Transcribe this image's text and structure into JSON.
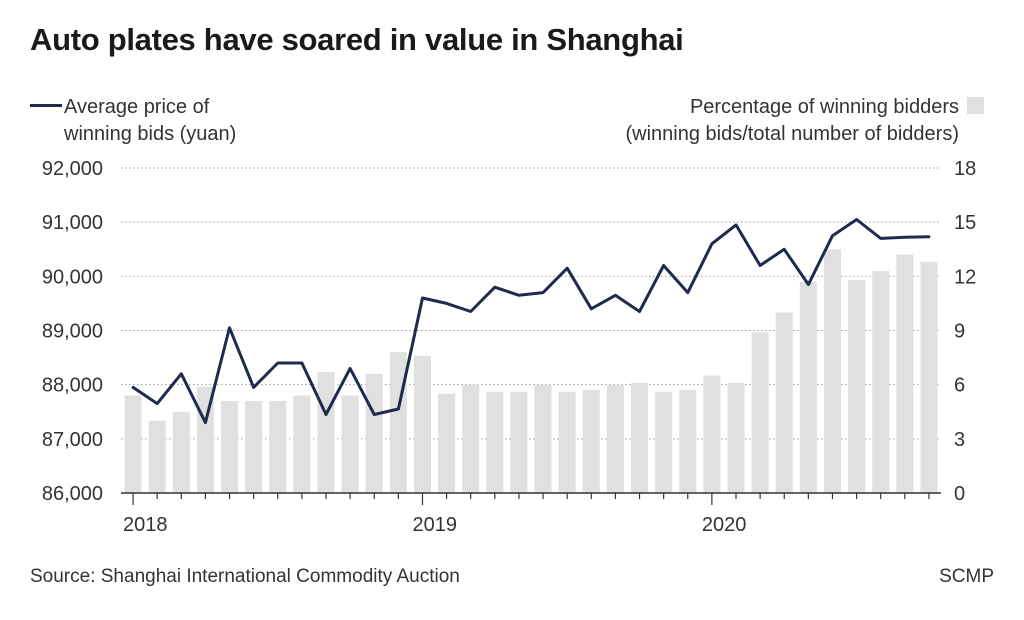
{
  "header": {
    "title": "Auto plates have soared in value in Shanghai"
  },
  "legend": {
    "line_label_1": "Average price of",
    "line_label_2": "winning bids (yuan)",
    "bar_label_1": "Percentage of winning bidders",
    "bar_label_2": "(winning bids/total number of bidders)"
  },
  "footer": {
    "source": "Source: Shanghai International Commodity Auction",
    "brand": "SCMP"
  },
  "colors": {
    "line": "#1f2a4d",
    "bar": "#e0e0e0",
    "grid": "#9a9a9a",
    "axis": "#333333"
  },
  "chart_data": {
    "type": "bar+line",
    "title": "Auto plates have soared in value in Shanghai",
    "x_tick_labels": [
      "2018",
      "2019",
      "2020"
    ],
    "x_tick_indices": [
      0,
      12,
      24
    ],
    "left_axis": {
      "label": "Average price of winning bids (yuan)",
      "range": [
        86000,
        92000
      ],
      "ticks": [
        86000,
        87000,
        88000,
        89000,
        90000,
        91000,
        92000
      ],
      "tick_labels": [
        "86,000",
        "87,000",
        "88,000",
        "89,000",
        "90,000",
        "91,000",
        "92,000"
      ]
    },
    "right_axis": {
      "label": "Percentage of winning bidders (winning bids/total number of bidders)",
      "range": [
        0,
        18
      ],
      "ticks": [
        0,
        3,
        6,
        9,
        12,
        15,
        18
      ],
      "tick_labels": [
        "0",
        "3",
        "6",
        "9",
        "12",
        "15",
        "18"
      ]
    },
    "series": [
      {
        "name": "Average price of winning bids (yuan)",
        "kind": "line",
        "axis": "left",
        "values": [
          87950,
          87650,
          88200,
          87300,
          89050,
          87950,
          88400,
          88400,
          87450,
          88300,
          87450,
          87550,
          89600,
          89500,
          89350,
          89800,
          89650,
          89700,
          90150,
          89400,
          89650,
          89350,
          90200,
          89700,
          90600,
          90950,
          90200,
          90500,
          89850,
          90750,
          91050,
          90700,
          90720,
          90730
        ]
      },
      {
        "name": "Percentage of winning bidders",
        "kind": "bar",
        "axis": "right",
        "values": [
          5.4,
          4.0,
          4.5,
          5.9,
          5.1,
          5.1,
          5.1,
          5.4,
          6.7,
          5.4,
          6.6,
          7.8,
          7.6,
          5.5,
          6.0,
          5.6,
          5.6,
          6.0,
          5.6,
          5.7,
          6.0,
          6.1,
          5.6,
          5.7,
          6.5,
          6.1,
          8.9,
          10.0,
          11.7,
          13.5,
          11.8,
          12.3,
          13.2,
          12.8
        ]
      }
    ]
  }
}
